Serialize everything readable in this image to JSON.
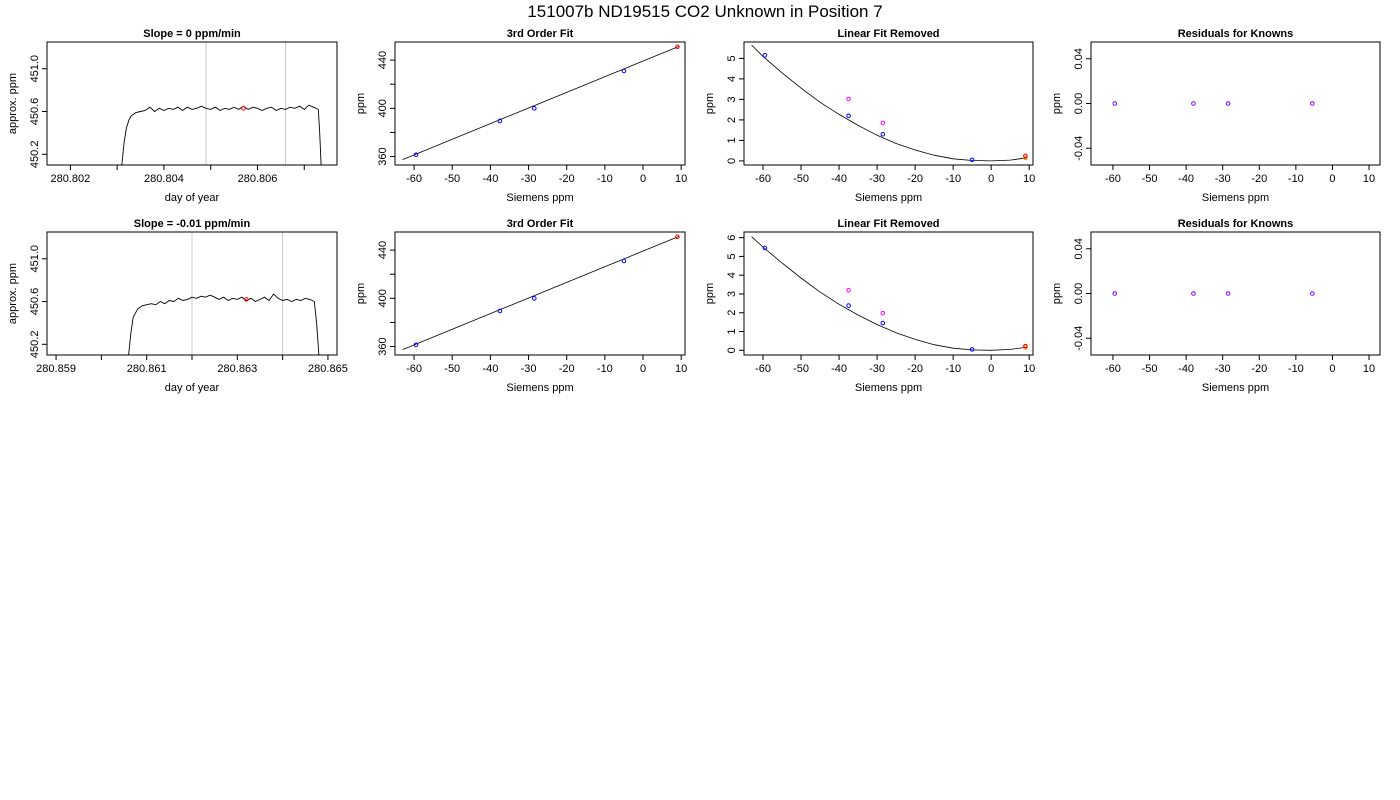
{
  "figure": {
    "title": "151007b     ND19515   CO2 Unknown in Position  7"
  },
  "colors": {
    "axis": "#000000",
    "vline": "#c8c8c8",
    "known": "#0000ff",
    "unknown": "#ff00ff",
    "red": "#ff0000",
    "orange": "#ff8c00",
    "residual": "#8000ff"
  },
  "chart_data": [
    {
      "type": "line",
      "title": "Slope =  0  ppm/min",
      "xlabel": "day of year",
      "ylabel": "approx. ppm",
      "xlim": [
        280.8015,
        280.8077
      ],
      "ylim": [
        450.1,
        451.25
      ],
      "xticks": [
        280.802,
        280.803,
        280.804,
        280.805,
        280.806,
        280.807
      ],
      "xtick_labels": [
        "280.802",
        "",
        "280.804",
        "",
        "280.806",
        ""
      ],
      "yticks": [
        450.2,
        450.6,
        451.0
      ],
      "ytick_labels": [
        "450.2",
        "450.6",
        "451.0"
      ],
      "vlines": [
        280.8049,
        280.8066
      ],
      "series": [
        {
          "x": [
            280.8031,
            280.80315,
            280.8032,
            280.80325,
            280.8033,
            280.8034,
            280.8035,
            280.8036,
            280.8037,
            280.8038,
            280.8039,
            280.804,
            280.8041,
            280.8042,
            280.8043,
            280.8044,
            280.8045,
            280.8046,
            280.8047,
            280.8048,
            280.8049,
            280.805,
            280.8051,
            280.8052,
            280.8053,
            280.8054,
            280.8055,
            280.8056,
            280.8057,
            280.8058,
            280.8059,
            280.806,
            280.8061,
            280.8062,
            280.8063,
            280.8064,
            280.8065,
            280.8066,
            280.8067,
            280.8068,
            280.8069,
            280.807,
            280.8071,
            280.8072,
            280.8073,
            280.80733,
            280.80736
          ],
          "y": [
            450.1,
            450.32,
            450.45,
            450.52,
            450.56,
            450.59,
            450.6,
            450.61,
            450.64,
            450.6,
            450.63,
            450.61,
            450.63,
            450.62,
            450.64,
            450.61,
            450.64,
            450.62,
            450.63,
            450.65,
            450.63,
            450.62,
            450.64,
            450.61,
            450.63,
            450.62,
            450.64,
            450.62,
            450.65,
            450.62,
            450.64,
            450.63,
            450.61,
            450.63,
            450.64,
            450.61,
            450.63,
            450.62,
            450.64,
            450.63,
            450.65,
            450.62,
            450.66,
            450.64,
            450.62,
            450.4,
            450.1
          ]
        }
      ],
      "points": [
        {
          "x": 280.8057,
          "y": 450.63,
          "color": "red"
        }
      ]
    },
    {
      "type": "scatter",
      "title": "3rd Order Fit",
      "xlabel": "Siemens ppm",
      "ylabel": "ppm",
      "xlim": [
        -65,
        11
      ],
      "ylim": [
        353,
        455
      ],
      "xticks": [
        -60,
        -50,
        -40,
        -30,
        -20,
        -10,
        0,
        10
      ],
      "yticks": [
        360,
        380,
        400,
        420,
        440
      ],
      "ytick_labels": [
        "360",
        "",
        "400",
        "",
        "440"
      ],
      "curve": {
        "x": [
          -63,
          9.5
        ],
        "y": [
          357.5,
          451.5
        ]
      },
      "points": [
        {
          "x": -59.5,
          "y": 361.5,
          "color": "known"
        },
        {
          "x": -37.5,
          "y": 389.5,
          "color": "known"
        },
        {
          "x": -28.5,
          "y": 400,
          "color": "known"
        },
        {
          "x": -5,
          "y": 431,
          "color": "known"
        },
        {
          "x": 9,
          "y": 451,
          "color": "red"
        }
      ]
    },
    {
      "type": "scatter",
      "title": "Linear Fit Removed",
      "xlabel": "Siemens ppm",
      "ylabel": "ppm",
      "xlim": [
        -65,
        11
      ],
      "ylim": [
        -0.2,
        5.8
      ],
      "xticks": [
        -60,
        -50,
        -40,
        -30,
        -20,
        -10,
        0,
        10
      ],
      "yticks": [
        0,
        1,
        2,
        3,
        4,
        5
      ],
      "curve": {
        "x": [
          -63,
          -60,
          -55,
          -50,
          -45,
          -40,
          -35,
          -30,
          -25,
          -20,
          -15,
          -10,
          -5,
          0,
          5,
          9.5
        ],
        "y": [
          5.65,
          5.1,
          4.3,
          3.55,
          2.86,
          2.27,
          1.73,
          1.25,
          0.85,
          0.53,
          0.28,
          0.1,
          0.02,
          0.0,
          0.04,
          0.15
        ]
      },
      "points": [
        {
          "x": -59.5,
          "y": 5.15,
          "color": "known"
        },
        {
          "x": -37.5,
          "y": 2.2,
          "color": "known"
        },
        {
          "x": -28.5,
          "y": 1.3,
          "color": "known"
        },
        {
          "x": -5,
          "y": 0.05,
          "color": "known"
        },
        {
          "x": -37.5,
          "y": 3.02,
          "color": "unknown"
        },
        {
          "x": -28.5,
          "y": 1.85,
          "color": "unknown"
        },
        {
          "x": 9,
          "y": 0.15,
          "color": "orange"
        },
        {
          "x": 9,
          "y": 0.25,
          "color": "red"
        }
      ]
    },
    {
      "type": "scatter",
      "title": "Residuals for Knowns",
      "xlabel": "Siemens ppm",
      "ylabel": "ppm",
      "xlim": [
        -66,
        13
      ],
      "ylim": [
        -0.055,
        0.055
      ],
      "xticks": [
        -60,
        -50,
        -40,
        -30,
        -20,
        -10,
        0,
        10
      ],
      "yticks": [
        -0.04,
        0.0,
        0.04
      ],
      "ytick_labels": [
        "-0.04",
        "0.00",
        "0.04"
      ],
      "points": [
        {
          "x": -59.5,
          "y": 0,
          "color": "residual"
        },
        {
          "x": -38,
          "y": 0,
          "color": "residual"
        },
        {
          "x": -28.5,
          "y": 0,
          "color": "residual"
        },
        {
          "x": -5.5,
          "y": 0,
          "color": "residual"
        }
      ]
    },
    {
      "type": "line",
      "title": "Slope =  -0.01  ppm/min",
      "xlabel": "day of year",
      "ylabel": "approx. ppm",
      "xlim": [
        280.8588,
        280.8652
      ],
      "ylim": [
        450.1,
        451.25
      ],
      "xticks": [
        280.859,
        280.86,
        280.861,
        280.862,
        280.863,
        280.864,
        280.865
      ],
      "xtick_labels": [
        "280.859",
        "",
        "280.861",
        "",
        "280.863",
        "",
        "280.865"
      ],
      "yticks": [
        450.2,
        450.6,
        451.0
      ],
      "ytick_labels": [
        "450.2",
        "450.6",
        "451.0"
      ],
      "vlines": [
        280.862,
        280.864
      ],
      "series": [
        {
          "x": [
            280.8606,
            280.86065,
            280.8607,
            280.8608,
            280.8609,
            280.861,
            280.8611,
            280.8612,
            280.8613,
            280.8614,
            280.8615,
            280.8616,
            280.8617,
            280.8618,
            280.8619,
            280.862,
            280.8621,
            280.8622,
            280.8623,
            280.8624,
            280.8625,
            280.8626,
            280.8627,
            280.8628,
            280.8629,
            280.863,
            280.8631,
            280.8632,
            280.8633,
            280.8634,
            280.8635,
            280.8636,
            280.8637,
            280.8638,
            280.8639,
            280.864,
            280.8641,
            280.8642,
            280.8643,
            280.8644,
            280.8645,
            280.8646,
            280.8647,
            280.86475,
            280.8648
          ],
          "y": [
            450.1,
            450.3,
            450.45,
            450.53,
            450.56,
            450.57,
            450.58,
            450.57,
            450.6,
            450.58,
            450.61,
            450.6,
            450.63,
            450.61,
            450.62,
            450.64,
            450.63,
            450.65,
            450.64,
            450.66,
            450.64,
            450.62,
            450.64,
            450.61,
            450.63,
            450.62,
            450.64,
            450.61,
            450.63,
            450.6,
            450.62,
            450.64,
            450.61,
            450.67,
            450.63,
            450.61,
            450.62,
            450.6,
            450.62,
            450.61,
            450.63,
            450.62,
            450.6,
            450.4,
            450.1
          ]
        }
      ],
      "points": [
        {
          "x": 280.8632,
          "y": 450.62,
          "color": "red"
        }
      ]
    },
    {
      "type": "scatter",
      "title": "3rd Order Fit",
      "xlabel": "Siemens ppm",
      "ylabel": "ppm",
      "xlim": [
        -65,
        11
      ],
      "ylim": [
        353,
        455
      ],
      "xticks": [
        -60,
        -50,
        -40,
        -30,
        -20,
        -10,
        0,
        10
      ],
      "yticks": [
        360,
        380,
        400,
        420,
        440
      ],
      "ytick_labels": [
        "360",
        "",
        "400",
        "",
        "440"
      ],
      "curve": {
        "x": [
          -63,
          9.5
        ],
        "y": [
          357.5,
          451.5
        ]
      },
      "points": [
        {
          "x": -59.5,
          "y": 361.5,
          "color": "known"
        },
        {
          "x": -37.5,
          "y": 389.5,
          "color": "known"
        },
        {
          "x": -28.5,
          "y": 400,
          "color": "known"
        },
        {
          "x": -5,
          "y": 431,
          "color": "known"
        },
        {
          "x": 9,
          "y": 451,
          "color": "red"
        }
      ]
    },
    {
      "type": "scatter",
      "title": "Linear Fit Removed",
      "xlabel": "Siemens ppm",
      "ylabel": "ppm",
      "xlim": [
        -65,
        11
      ],
      "ylim": [
        -0.25,
        6.3
      ],
      "xticks": [
        -60,
        -50,
        -40,
        -30,
        -20,
        -10,
        0,
        10
      ],
      "yticks": [
        0,
        1,
        2,
        3,
        4,
        5,
        6
      ],
      "curve": {
        "x": [
          -63,
          -60,
          -55,
          -50,
          -45,
          -40,
          -35,
          -30,
          -25,
          -20,
          -15,
          -10,
          -5,
          0,
          5,
          9.5
        ],
        "y": [
          6.05,
          5.5,
          4.65,
          3.85,
          3.1,
          2.45,
          1.88,
          1.37,
          0.94,
          0.58,
          0.3,
          0.11,
          0.02,
          0.0,
          0.05,
          0.17
        ]
      },
      "points": [
        {
          "x": -59.5,
          "y": 5.45,
          "color": "known"
        },
        {
          "x": -37.5,
          "y": 2.38,
          "color": "known"
        },
        {
          "x": -28.5,
          "y": 1.45,
          "color": "known"
        },
        {
          "x": -5,
          "y": 0.05,
          "color": "known"
        },
        {
          "x": -37.5,
          "y": 3.2,
          "color": "unknown"
        },
        {
          "x": -28.5,
          "y": 1.98,
          "color": "unknown"
        },
        {
          "x": 9,
          "y": 0.15,
          "color": "orange"
        },
        {
          "x": 9,
          "y": 0.22,
          "color": "red"
        }
      ]
    },
    {
      "type": "scatter",
      "title": "Residuals for Knowns",
      "xlabel": "Siemens ppm",
      "ylabel": "ppm",
      "xlim": [
        -66,
        13
      ],
      "ylim": [
        -0.055,
        0.055
      ],
      "xticks": [
        -60,
        -50,
        -40,
        -30,
        -20,
        -10,
        0,
        10
      ],
      "yticks": [
        -0.04,
        0.0,
        0.04
      ],
      "ytick_labels": [
        "-0.04",
        "0.00",
        "0.04"
      ],
      "points": [
        {
          "x": -59.5,
          "y": 0,
          "color": "residual"
        },
        {
          "x": -38,
          "y": 0,
          "color": "residual"
        },
        {
          "x": -28.5,
          "y": 0,
          "color": "residual"
        },
        {
          "x": -5.5,
          "y": 0,
          "color": "residual"
        }
      ]
    }
  ]
}
